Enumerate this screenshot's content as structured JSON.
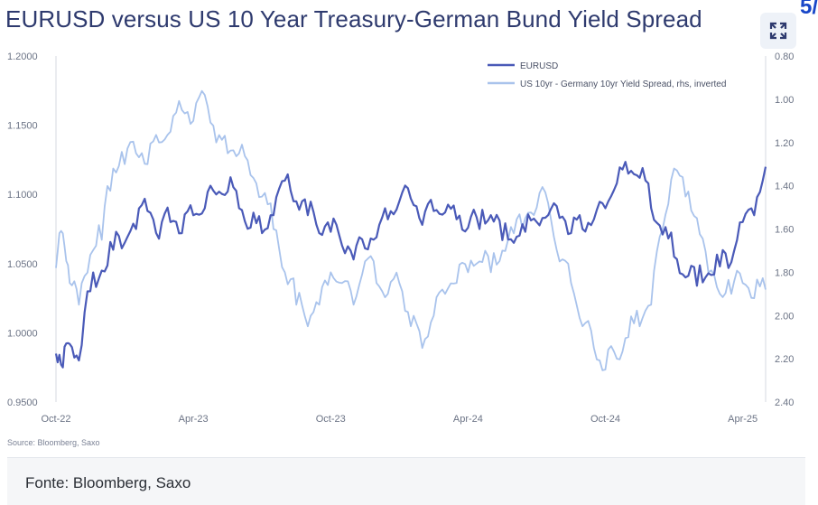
{
  "title": "EURUSD versus US 10 Year Treasury-German Bund Yield Spread",
  "corner_mark": "5/",
  "expand_icon": "expand-icon",
  "footer": {
    "text": "Fonte: Bloomberg, Saxo"
  },
  "colors": {
    "eurusd": "#4a5ab8",
    "spread": "#a9c3ec",
    "title": "#2e3a6e",
    "footer_bg": "#f5f6f8"
  },
  "chart_data": {
    "type": "line",
    "title": "EURUSD versus US 10 Year Treasury-German Bund Yield Spread",
    "source": "Source: Bloomberg, Saxo",
    "x_ticks": [
      "Oct-22",
      "Apr-23",
      "Oct-23",
      "Apr-24",
      "Oct-24",
      "Apr-25"
    ],
    "x_range": [
      0,
      31
    ],
    "y_left": {
      "ticks": [
        "0.9500",
        "1.0000",
        "1.0500",
        "1.1000",
        "1.1500",
        "1.2000"
      ],
      "ylim": [
        0.95,
        1.2
      ]
    },
    "y_right": {
      "ticks": [
        "0.80",
        "1.00",
        "1.20",
        "1.40",
        "1.60",
        "1.80",
        "2.00",
        "2.20",
        "2.40"
      ],
      "ylim": [
        0.8,
        2.4
      ],
      "inverted": true
    },
    "series": [
      {
        "name": "EURUSD",
        "axis": "left",
        "x": [
          0,
          0.3,
          0.6,
          1,
          1.5,
          2,
          2.5,
          3,
          3.5,
          4,
          4.5,
          5,
          5.5,
          6,
          6.5,
          7,
          7.5,
          8,
          8.5,
          9,
          9.5,
          10,
          10.5,
          11,
          11.5,
          12,
          12.5,
          13,
          13.5,
          14,
          14.5,
          15,
          15.5,
          16,
          16.5,
          17,
          17.5,
          18,
          18.5,
          19,
          19.5,
          20,
          20.5,
          21,
          21.5,
          22,
          22.5,
          23,
          23.5,
          24,
          24.5,
          25,
          25.5,
          26,
          26.5,
          27,
          27.5,
          28,
          28.5,
          29,
          29.5,
          30,
          30.5,
          31
        ],
        "values": [
          0.985,
          0.975,
          0.992,
          0.98,
          1.03,
          1.045,
          1.06,
          1.065,
          1.075,
          1.088,
          1.068,
          1.08,
          1.072,
          1.085,
          1.09,
          1.1,
          1.102,
          1.09,
          1.076,
          1.072,
          1.085,
          1.11,
          1.095,
          1.085,
          1.072,
          1.073,
          1.063,
          1.053,
          1.061,
          1.069,
          1.082,
          1.095,
          1.097,
          1.078,
          1.088,
          1.087,
          1.082,
          1.076,
          1.075,
          1.085,
          1.067,
          1.065,
          1.073,
          1.08,
          1.085,
          1.083,
          1.072,
          1.075,
          1.082,
          1.09,
          1.108,
          1.115,
          1.112,
          1.09,
          1.071,
          1.055,
          1.04,
          1.034,
          1.043,
          1.048,
          1.051,
          1.08,
          1.085,
          1.12
        ]
      },
      {
        "name": "US 10yr - Germany 10yr Yield Spread, rhs, inverted",
        "axis": "right",
        "x": [
          0,
          0.3,
          0.6,
          1,
          1.5,
          2,
          2.5,
          3,
          3.5,
          4,
          4.5,
          5,
          5.5,
          6,
          6.5,
          7,
          7.5,
          8,
          8.5,
          9,
          9.5,
          10,
          10.5,
          11,
          11.5,
          12,
          12.5,
          13,
          13.5,
          14,
          14.5,
          15,
          15.5,
          16,
          16.5,
          17,
          17.5,
          18,
          18.5,
          19,
          19.5,
          20,
          20.5,
          21,
          21.5,
          22,
          22.5,
          23,
          23.5,
          24,
          24.5,
          25,
          25.5,
          26,
          26.5,
          27,
          27.5,
          28,
          28.5,
          29,
          29.5,
          30,
          30.5,
          31
        ],
        "values": [
          1.78,
          1.62,
          1.85,
          1.95,
          1.72,
          1.65,
          1.32,
          1.3,
          1.25,
          1.3,
          1.2,
          1.15,
          1.05,
          1.1,
          0.98,
          1.2,
          1.25,
          1.25,
          1.35,
          1.45,
          1.6,
          1.8,
          1.95,
          2.05,
          1.95,
          1.8,
          1.85,
          1.95,
          1.75,
          1.85,
          1.9,
          1.85,
          2.05,
          2.15,
          2.0,
          1.9,
          1.85,
          1.8,
          1.75,
          1.8,
          1.7,
          1.62,
          1.55,
          1.5,
          1.48,
          1.75,
          1.85,
          2.05,
          2.15,
          2.25,
          2.2,
          2.1,
          2.05,
          1.95,
          1.6,
          1.32,
          1.45,
          1.55,
          1.8,
          1.9,
          1.9,
          1.85,
          1.92,
          1.88
        ]
      }
    ],
    "legend": [
      "EURUSD",
      "US 10yr - Germany 10yr Yield Spread, rhs, inverted"
    ],
    "legend_position": "top-right",
    "grid": false
  }
}
